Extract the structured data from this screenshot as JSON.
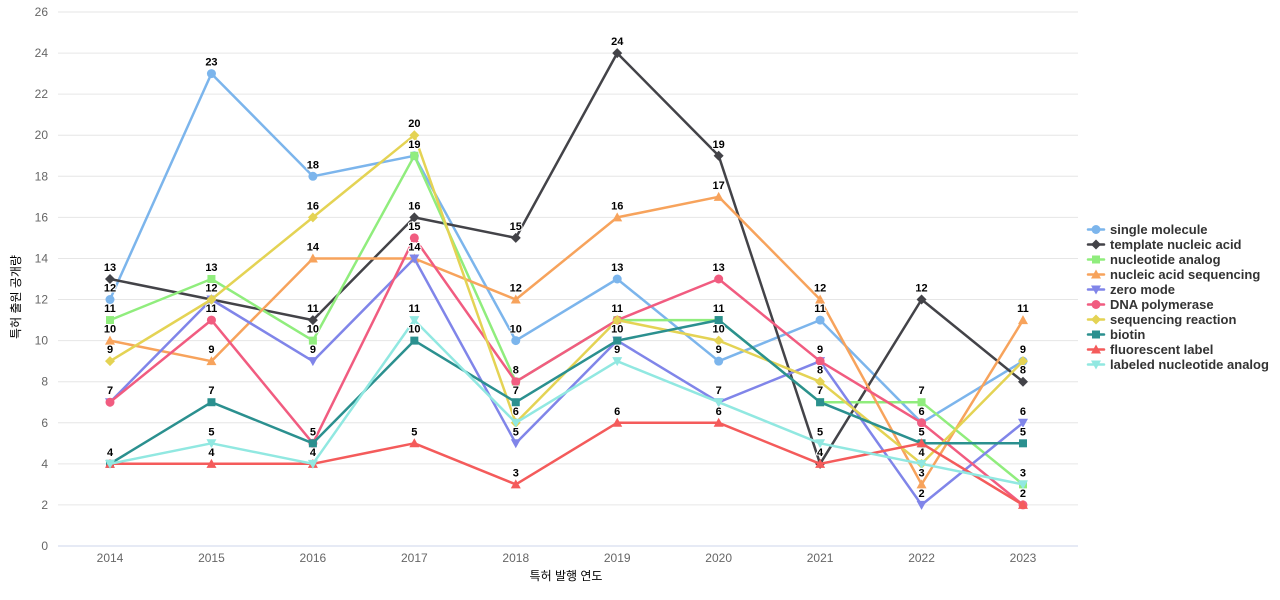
{
  "chart_data": {
    "type": "line",
    "title": "",
    "xlabel": "특허 발행 연도",
    "ylabel": "특허 출원 공개량",
    "x": [
      "2014",
      "2015",
      "2016",
      "2017",
      "2018",
      "2019",
      "2020",
      "2021",
      "2022",
      "2023"
    ],
    "ylim": [
      0,
      26
    ],
    "ytick_step": 2,
    "grid": true,
    "legend_position": "right",
    "series": [
      {
        "name": "single molecule",
        "color": "#7cb5ec",
        "marker": "circle",
        "values": [
          12,
          23,
          18,
          19,
          10,
          13,
          9,
          11,
          6,
          9
        ]
      },
      {
        "name": "template nucleic acid",
        "color": "#434348",
        "marker": "diamond",
        "values": [
          13,
          12,
          11,
          16,
          15,
          24,
          19,
          4,
          12,
          8
        ]
      },
      {
        "name": "nucleotide analog",
        "color": "#90ed7d",
        "marker": "square",
        "values": [
          11,
          13,
          10,
          19,
          8,
          11,
          11,
          7,
          7,
          3
        ]
      },
      {
        "name": "nucleic acid sequencing",
        "color": "#f7a35c",
        "marker": "triangle",
        "values": [
          10,
          9,
          14,
          14,
          12,
          16,
          17,
          12,
          3,
          11
        ]
      },
      {
        "name": "zero mode",
        "color": "#8085e9",
        "marker": "triangle-down",
        "values": [
          7,
          12,
          9,
          14,
          5,
          10,
          7,
          9,
          2,
          6
        ]
      },
      {
        "name": "DNA polymerase",
        "color": "#f15c80",
        "marker": "circle",
        "values": [
          7,
          11,
          5,
          15,
          8,
          11,
          13,
          9,
          6,
          2
        ]
      },
      {
        "name": "sequencing reaction",
        "color": "#e4d354",
        "marker": "diamond",
        "values": [
          9,
          12,
          16,
          20,
          6,
          11,
          10,
          8,
          4,
          9
        ]
      },
      {
        "name": "biotin",
        "color": "#2b908f",
        "marker": "square",
        "values": [
          4,
          7,
          5,
          10,
          7,
          10,
          11,
          7,
          5,
          5
        ]
      },
      {
        "name": "fluorescent label",
        "color": "#f45b5b",
        "marker": "triangle",
        "values": [
          4,
          4,
          4,
          5,
          3,
          6,
          6,
          4,
          5,
          2
        ]
      },
      {
        "name": "labeled nucleotide analog",
        "color": "#91e8e1",
        "marker": "triangle-down",
        "values": [
          4,
          5,
          4,
          11,
          6,
          9,
          7,
          5,
          4,
          3
        ]
      }
    ]
  },
  "styles": {
    "background": "#ffffff",
    "grid_color": "#e6e6e6",
    "axis_line_color": "#ccd6eb",
    "tick_label_color": "#666666",
    "axis_title_color": "#666666",
    "legend_text_color": "#333333",
    "data_label_color": "#000000"
  }
}
